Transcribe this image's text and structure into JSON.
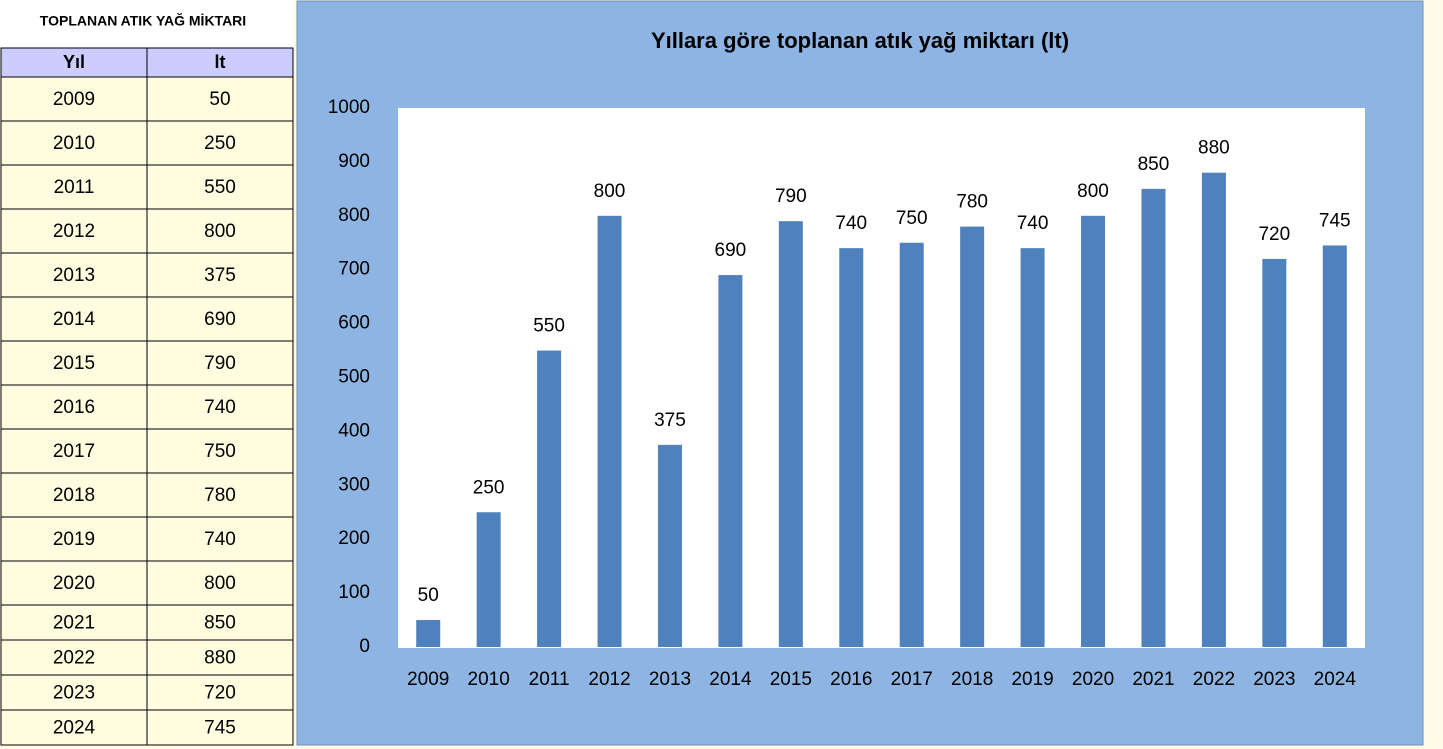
{
  "table": {
    "title": "TOPLANAN ATIK YAĞ MİKTARI",
    "headers": [
      "Yıl",
      "lt"
    ],
    "rows": [
      [
        "2009",
        "50"
      ],
      [
        "2010",
        "250"
      ],
      [
        "2011",
        "550"
      ],
      [
        "2012",
        "800"
      ],
      [
        "2013",
        "375"
      ],
      [
        "2014",
        "690"
      ],
      [
        "2015",
        "790"
      ],
      [
        "2016",
        "740"
      ],
      [
        "2017",
        "750"
      ],
      [
        "2018",
        "780"
      ],
      [
        "2019",
        "740"
      ],
      [
        "2020",
        "800"
      ],
      [
        "2021",
        "850"
      ],
      [
        "2022",
        "880"
      ],
      [
        "2023",
        "720"
      ],
      [
        "2024",
        "745"
      ]
    ]
  },
  "chart_data": {
    "type": "bar",
    "title": "Yıllara göre toplanan atık yağ miktarı (lt)",
    "categories": [
      "2009",
      "2010",
      "2011",
      "2012",
      "2013",
      "2014",
      "2015",
      "2016",
      "2017",
      "2018",
      "2019",
      "2020",
      "2021",
      "2022",
      "2023",
      "2024"
    ],
    "values": [
      50,
      250,
      550,
      800,
      375,
      690,
      790,
      740,
      750,
      780,
      740,
      800,
      850,
      880,
      720,
      745
    ],
    "color": "#4f81bd",
    "ylim": [
      0,
      1000
    ],
    "yticks": [
      0,
      100,
      200,
      300,
      400,
      500,
      600,
      700,
      800,
      900,
      1000
    ],
    "grid": false
  }
}
